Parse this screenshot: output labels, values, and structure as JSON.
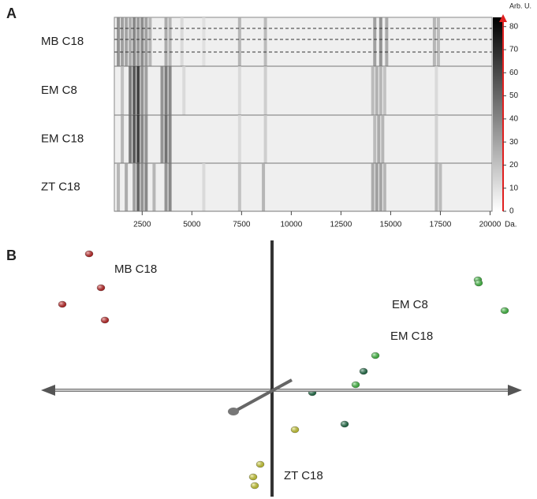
{
  "chart_data": [
    {
      "type": "gel",
      "panel": "A",
      "x_label": "Da.",
      "colorbar_label": "Arb. U.",
      "xlim": [
        1100,
        20100
      ],
      "xticks": [
        2500,
        5000,
        7500,
        10000,
        12500,
        15000,
        17500,
        20000
      ],
      "clim": [
        0,
        84
      ],
      "cticks": [
        0,
        10,
        20,
        30,
        40,
        50,
        60,
        70,
        80
      ],
      "series": [
        {
          "name": "MB C18",
          "x": [
            1300,
            1500,
            1700,
            1900,
            2100,
            2300,
            2500,
            2700,
            2900,
            3700,
            3900,
            4500,
            5600,
            7400,
            8700,
            14200,
            14500,
            14800,
            17200,
            17400
          ],
          "values": [
            45,
            40,
            38,
            35,
            50,
            42,
            48,
            40,
            30,
            35,
            30,
            15,
            12,
            30,
            28,
            40,
            45,
            35,
            30,
            28
          ]
        },
        {
          "name": "EM C8",
          "x": [
            1500,
            1900,
            2100,
            2300,
            2500,
            2700,
            3500,
            3700,
            3900,
            4600,
            7400,
            8700,
            14100,
            14300,
            14500,
            14700,
            17300
          ],
          "values": [
            25,
            55,
            70,
            80,
            45,
            40,
            45,
            55,
            50,
            15,
            15,
            20,
            28,
            32,
            30,
            25,
            15
          ]
        },
        {
          "name": "EM C18",
          "x": [
            1500,
            1900,
            2100,
            2300,
            2500,
            2700,
            3500,
            3700,
            3900,
            7400,
            8700,
            14200,
            14400,
            14600,
            17300
          ],
          "values": [
            30,
            55,
            70,
            80,
            50,
            45,
            45,
            60,
            50,
            15,
            20,
            28,
            35,
            30,
            18
          ]
        },
        {
          "name": "ZT C18",
          "x": [
            1300,
            1700,
            2100,
            2300,
            2500,
            2700,
            3100,
            3700,
            3900,
            5600,
            7400,
            8600,
            14100,
            14300,
            14500,
            14700,
            17300,
            17500
          ],
          "values": [
            30,
            35,
            40,
            65,
            45,
            50,
            30,
            45,
            50,
            15,
            25,
            30,
            35,
            40,
            38,
            30,
            30,
            28
          ]
        }
      ]
    },
    {
      "type": "scatter",
      "panel": "B",
      "xlim": [
        -34.5,
        33.6
      ],
      "ylim": [
        -13.8,
        19.5
      ],
      "series": [
        {
          "name": "MB C18",
          "color": "#e02020",
          "x": [
            -23.2,
            -21.7,
            -26.6,
            -21.2
          ],
          "y": [
            17.3,
            13.0,
            10.9,
            8.9
          ]
        },
        {
          "name": "EM C8",
          "color": "#44dd44",
          "x": [
            26.1,
            26.2,
            29.5,
            13.1,
            10.6
          ],
          "y": [
            14.0,
            13.6,
            10.1,
            4.4,
            0.7
          ]
        },
        {
          "name": "EM C18",
          "color": "#1a7a4a",
          "x": [
            11.6,
            5.1,
            9.2
          ],
          "y": [
            2.4,
            -0.3,
            -4.3
          ]
        },
        {
          "name": "ZT C18",
          "color": "#eeee30",
          "x": [
            2.9,
            -1.5,
            -2.4,
            -2.2
          ],
          "y": [
            -5.0,
            -9.4,
            -11.0,
            -12.1
          ]
        }
      ]
    }
  ]
}
